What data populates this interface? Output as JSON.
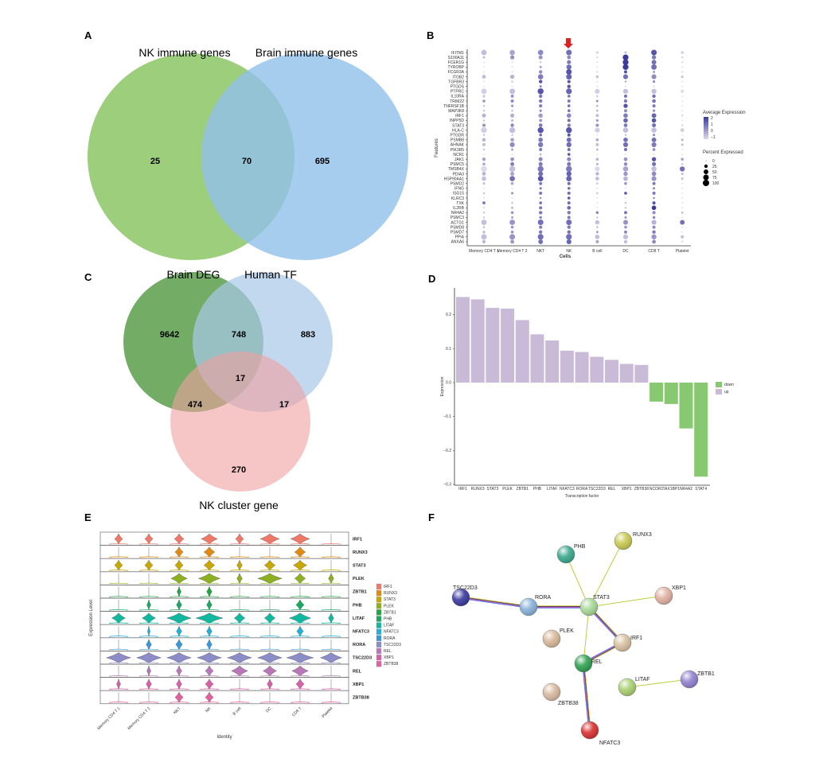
{
  "panels": {
    "A": {
      "label": "A",
      "sets": [
        "NK immune genes",
        "Brain immune genes"
      ],
      "counts": {
        "only_first": "25",
        "both": "70",
        "only_second": "695"
      },
      "colors": [
        "#8cc665",
        "#91c1ea"
      ]
    },
    "B": {
      "label": "B",
      "xlabel": "Cells",
      "ylabel": "Features",
      "legend_expr_title": "Average Expression",
      "legend_expr_ticks": [
        "2",
        "1",
        "0",
        "−1"
      ],
      "legend_pct_title": "Percent Expressed",
      "legend_pct_ticks": [
        "0",
        "25",
        "50",
        "75",
        "100"
      ],
      "highlight_column": "NK",
      "highlight_icon": "red-arrow-down-icon"
    },
    "C": {
      "label": "C",
      "sets": [
        "Brain DEG",
        "Human TF",
        "NK cluster gene"
      ],
      "counts": {
        "a": "9642",
        "ab": "748",
        "b": "883",
        "abc": "17",
        "ac": "474",
        "bc": "17",
        "c": "270"
      },
      "colors": [
        "#5a9e4a",
        "#a8c8e8",
        "#f0a0a0"
      ]
    },
    "D": {
      "label": "D"
    },
    "E": {
      "label": "E"
    },
    "F": {
      "label": "F",
      "nodes": [
        {
          "name": "RUNX3",
          "color": "#c8c850"
        },
        {
          "name": "PHB",
          "color": "#3aa88c"
        },
        {
          "name": "TSC22D3",
          "color": "#3a3aa0"
        },
        {
          "name": "RORA",
          "color": "#88b0d8"
        },
        {
          "name": "STAT3",
          "color": "#a8d898"
        },
        {
          "name": "XBP1",
          "color": "#e0b0a0"
        },
        {
          "name": "PLEK",
          "color": "#d8b898"
        },
        {
          "name": "IRF1",
          "color": "#d8c0a0"
        },
        {
          "name": "REL",
          "color": "#30a050"
        },
        {
          "name": "ZBTB1",
          "color": "#9080d0"
        },
        {
          "name": "LITAF",
          "color": "#a8d070"
        },
        {
          "name": "ZBTB38",
          "color": "#d8b8a0"
        },
        {
          "name": "NFATC3",
          "color": "#d83030"
        }
      ],
      "edges": [
        [
          "RUNX3",
          "STAT3"
        ],
        [
          "PHB",
          "STAT3"
        ],
        [
          "TSC22D3",
          "RORA"
        ],
        [
          "RORA",
          "STAT3"
        ],
        [
          "STAT3",
          "XBP1"
        ],
        [
          "STAT3",
          "IRF1"
        ],
        [
          "STAT3",
          "REL"
        ],
        [
          "IRF1",
          "REL"
        ],
        [
          "REL",
          "NFATC3"
        ],
        [
          "LITAF",
          "ZBTB1"
        ]
      ]
    }
  },
  "chart_data": [
    {
      "panel": "B",
      "type": "scatter",
      "subtype": "dot-plot",
      "xlabel": "Cells",
      "ylabel": "Features",
      "categories": [
        "Memory CD4 T 1",
        "Memory CD4 T 2",
        "NKT",
        "NK",
        "B cell",
        "DC",
        "CD8 T",
        "Platelet"
      ],
      "features": [
        "IFITM1",
        "S100A11",
        "FCER1G",
        "TYROBP",
        "FCGR3A",
        "ITGB2",
        "TGFBR3",
        "PTGDS",
        "PTPRC",
        "IL10RA",
        "TRIM22",
        "TNFRSF1B",
        "MAP3K8",
        "IRF1",
        "INPP5D",
        "STAT3",
        "HLA-C",
        "PTGDR",
        "PSMB8",
        "AHNAK",
        "PIK3R5",
        "NCR1",
        "JAK1",
        "PSMC5",
        "TMSB4X",
        "PDIA3",
        "HSP90AA1",
        "PSMD2",
        "IFNG",
        "ISG15",
        "KLRC3",
        "TXK",
        "IL2RB",
        "NR4A2",
        "PSMC3",
        "ACTG1",
        "PSMD8",
        "PSMD7",
        "PPIA",
        "ANXA6"
      ],
      "percent_expressed": [
        [
          70,
          65,
          70,
          75,
          10,
          10,
          75,
          15
        ],
        [
          10,
          40,
          35,
          30,
          5,
          80,
          40,
          5
        ],
        [
          2,
          2,
          5,
          35,
          2,
          80,
          50,
          5
        ],
        [
          2,
          2,
          10,
          60,
          2,
          80,
          70,
          2
        ],
        [
          2,
          2,
          25,
          75,
          5,
          20,
          10,
          5
        ],
        [
          35,
          40,
          65,
          75,
          15,
          55,
          55,
          10
        ],
        [
          2,
          5,
          25,
          20,
          2,
          5,
          10,
          2
        ],
        [
          2,
          2,
          10,
          25,
          2,
          2,
          5,
          2
        ],
        [
          70,
          70,
          85,
          80,
          55,
          55,
          60,
          20
        ],
        [
          10,
          20,
          25,
          15,
          5,
          20,
          25,
          2
        ],
        [
          15,
          20,
          25,
          20,
          10,
          25,
          30,
          2
        ],
        [
          5,
          10,
          20,
          15,
          5,
          40,
          20,
          2
        ],
        [
          5,
          5,
          10,
          15,
          5,
          20,
          10,
          2
        ],
        [
          35,
          35,
          40,
          45,
          20,
          45,
          50,
          5
        ],
        [
          5,
          10,
          15,
          20,
          10,
          45,
          45,
          2
        ],
        [
          20,
          25,
          30,
          25,
          20,
          30,
          35,
          5
        ],
        [
          80,
          80,
          85,
          85,
          55,
          65,
          65,
          30
        ],
        [
          5,
          5,
          15,
          20,
          2,
          5,
          10,
          2
        ],
        [
          25,
          30,
          45,
          50,
          15,
          45,
          50,
          10
        ],
        [
          20,
          55,
          60,
          60,
          20,
          55,
          55,
          10
        ],
        [
          5,
          10,
          20,
          20,
          5,
          20,
          15,
          2
        ],
        [
          2,
          2,
          5,
          15,
          2,
          2,
          2,
          2
        ],
        [
          25,
          30,
          35,
          35,
          15,
          30,
          40,
          15
        ],
        [
          15,
          30,
          35,
          35,
          10,
          25,
          35,
          5
        ],
        [
          85,
          85,
          85,
          85,
          55,
          65,
          65,
          60
        ],
        [
          30,
          35,
          55,
          60,
          25,
          40,
          45,
          10
        ],
        [
          45,
          65,
          70,
          70,
          30,
          45,
          55,
          10
        ],
        [
          10,
          15,
          20,
          20,
          5,
          15,
          20,
          2
        ],
        [
          2,
          2,
          10,
          15,
          2,
          2,
          10,
          2
        ],
        [
          5,
          10,
          20,
          20,
          5,
          15,
          20,
          2
        ],
        [
          2,
          2,
          5,
          15,
          2,
          2,
          5,
          2
        ],
        [
          15,
          5,
          15,
          20,
          2,
          5,
          20,
          2
        ],
        [
          5,
          10,
          20,
          30,
          2,
          5,
          45,
          2
        ],
        [
          5,
          15,
          25,
          25,
          15,
          20,
          20,
          5
        ],
        [
          5,
          10,
          15,
          20,
          5,
          10,
          15,
          2
        ],
        [
          70,
          70,
          75,
          75,
          40,
          55,
          55,
          50
        ],
        [
          5,
          15,
          20,
          25,
          5,
          15,
          20,
          2
        ],
        [
          10,
          15,
          25,
          25,
          10,
          20,
          25,
          2
        ],
        [
          75,
          75,
          80,
          80,
          45,
          55,
          60,
          20
        ],
        [
          20,
          30,
          50,
          55,
          20,
          25,
          30,
          5
        ]
      ],
      "average_expression": [
        [
          -0.5,
          0,
          0.5,
          1,
          -0.8,
          -0.5,
          1.5,
          -0.8
        ],
        [
          -0.5,
          0.3,
          0.3,
          0.5,
          -1,
          2,
          0.8,
          -0.8
        ],
        [
          -1,
          -1,
          -0.5,
          0.8,
          -1,
          2,
          1,
          -1
        ],
        [
          -1,
          -1,
          0,
          1,
          -1,
          2,
          1,
          -1
        ],
        [
          -1,
          -1,
          0.5,
          1.5,
          -1,
          1.5,
          0,
          -1
        ],
        [
          -0.5,
          -0.3,
          0.8,
          1.2,
          -0.5,
          1,
          0.5,
          -0.5
        ],
        [
          -1,
          -0.5,
          1.5,
          1.5,
          -1,
          0,
          0.5,
          -1
        ],
        [
          -1,
          -1,
          0.5,
          1.5,
          -1,
          -1,
          -1,
          -1
        ],
        [
          -0.8,
          -0.5,
          1.5,
          1.2,
          -0.8,
          -0.5,
          -0.5,
          -1
        ],
        [
          -0.5,
          0.3,
          0.8,
          1,
          -0.5,
          1,
          1,
          -1
        ],
        [
          0.3,
          0.5,
          0.8,
          0.8,
          0.3,
          0.8,
          0.8,
          -1
        ],
        [
          -0.5,
          0.3,
          0.8,
          1,
          0,
          1.5,
          0.8,
          -1
        ],
        [
          -0.5,
          -0.3,
          0.5,
          1,
          0,
          0.5,
          0.5,
          -1
        ],
        [
          -0.3,
          -0.2,
          0.2,
          0.5,
          -0.5,
          0.8,
          1.2,
          -0.8
        ],
        [
          -0.5,
          -0.3,
          0.5,
          1,
          0.3,
          1.2,
          1.5,
          -1
        ],
        [
          0.3,
          0.5,
          0.8,
          0.8,
          0.3,
          0.8,
          1,
          -0.8
        ],
        [
          -0.8,
          -0.5,
          1.5,
          1.5,
          -0.8,
          -0.5,
          -0.5,
          -0.8
        ],
        [
          -0.5,
          -0.5,
          1,
          1.5,
          -1,
          -0.5,
          0.5,
          -1
        ],
        [
          -0.3,
          0,
          0.8,
          1,
          0,
          1,
          1,
          -0.3
        ],
        [
          -0.5,
          0.5,
          0.8,
          1,
          -0.5,
          1,
          0.8,
          -0.5
        ],
        [
          -0.5,
          0,
          0.8,
          1,
          0,
          1,
          0.5,
          -1
        ],
        [
          -1,
          -1,
          0,
          1.5,
          -1,
          -1,
          -1,
          -1
        ],
        [
          0,
          0.3,
          0.5,
          0.5,
          -0.3,
          0.3,
          1.5,
          0
        ],
        [
          0,
          0.8,
          0.8,
          0.8,
          -0.3,
          0.5,
          1,
          -0.5
        ],
        [
          -1,
          -0.5,
          0.8,
          0.8,
          -1,
          0,
          -0.5,
          1
        ],
        [
          -0.3,
          0,
          1,
          1.2,
          -0.3,
          0.3,
          0.5,
          -0.5
        ],
        [
          -0.5,
          1,
          1.5,
          1.2,
          -0.5,
          -0.3,
          0.3,
          -0.5
        ],
        [
          -0.5,
          0,
          0.8,
          1,
          -0.5,
          0.3,
          0.8,
          -1
        ],
        [
          -1,
          -1,
          0.8,
          1,
          -1,
          -1,
          0.5,
          -1
        ],
        [
          -0.5,
          0.3,
          0.8,
          1,
          -0.5,
          1.5,
          0.8,
          -1
        ],
        [
          -1,
          -1,
          0.5,
          1.5,
          -1,
          -1,
          0.8,
          -1
        ],
        [
          1,
          -0.5,
          1,
          1,
          -1,
          -0.5,
          1.5,
          -1
        ],
        [
          -1,
          -0.5,
          0.8,
          1,
          -1,
          -0.5,
          2,
          -1
        ],
        [
          -0.5,
          0.3,
          0.8,
          0.8,
          0.5,
          0.8,
          0.5,
          0
        ],
        [
          -0.5,
          0,
          0.5,
          0.8,
          -0.5,
          0.3,
          0.5,
          -1
        ],
        [
          -0.5,
          0.3,
          1,
          1,
          -0.5,
          0.3,
          -0.3,
          1
        ],
        [
          -0.3,
          0.3,
          0.8,
          0.8,
          -0.3,
          0.3,
          0.5,
          -1
        ],
        [
          -0.3,
          0.3,
          0.8,
          1,
          0,
          0.5,
          0.8,
          -1
        ],
        [
          -0.5,
          0.3,
          1,
          1,
          -0.5,
          -0.5,
          0.3,
          -0.5
        ],
        [
          -0.3,
          0.3,
          1,
          1.2,
          0,
          -0.5,
          0.5,
          -1
        ]
      ],
      "expression_range": [
        -1,
        2
      ],
      "color_low": "#ddd8ea",
      "color_high": "#3b3b9e"
    },
    {
      "panel": "D",
      "type": "bar",
      "xlabel": "Transcription factor",
      "ylabel": "Expression",
      "categories": [
        "IRF1",
        "RUNX3",
        "STAT3",
        "PLEK",
        "ZBTB1",
        "PHB",
        "LITAF",
        "NFATC3",
        "RORA",
        "TSC22D3",
        "REL",
        "XBP1",
        "ZBTB38",
        "NCOR1",
        "TAX1BP1",
        "NR4A2",
        "STAT4"
      ],
      "values": [
        0.252,
        0.245,
        0.22,
        0.218,
        0.184,
        0.142,
        0.124,
        0.094,
        0.09,
        0.076,
        0.067,
        0.055,
        0.052,
        -0.056,
        -0.063,
        -0.135,
        -0.277
      ],
      "groups": [
        "up",
        "up",
        "up",
        "up",
        "up",
        "up",
        "up",
        "up",
        "up",
        "up",
        "up",
        "up",
        "up",
        "down",
        "down",
        "down",
        "down"
      ],
      "ylim": [
        -0.3,
        0.26
      ],
      "yticks": [
        "0.2",
        "0.1",
        "0.0",
        "−0.1",
        "−0.2",
        "−0.3"
      ],
      "ytick_values": [
        0.2,
        0.1,
        0,
        -0.1,
        -0.2,
        -0.3
      ],
      "legend": [
        {
          "name": "down",
          "color": "#88c870"
        },
        {
          "name": "up",
          "color": "#c9bbd8"
        }
      ],
      "legend_position": "right",
      "grid": false
    },
    {
      "panel": "E",
      "type": "violin",
      "xlabel": "Identity",
      "ylabel": "Expression Level",
      "categories": [
        "Memory CD4 T 1",
        "Memory CD4 T 2",
        "NKT",
        "NK",
        "B cell",
        "DC",
        "CD8 T",
        "Platelet"
      ],
      "features": [
        "IRF1",
        "RUNX3",
        "STAT3",
        "PLEK",
        "ZBTB1",
        "PHB",
        "LITAF",
        "NFATC3",
        "RORA",
        "TSC22D3",
        "REL",
        "XBP1",
        "ZBTB38"
      ],
      "colors": [
        "#f07868",
        "#e08a10",
        "#c8a800",
        "#8cb020",
        "#20a840",
        "#18a860",
        "#10b8a0",
        "#20b0d8",
        "#3898d8",
        "#8c8cc8",
        "#b878b8",
        "#d860a8",
        "#e060a0"
      ],
      "relative_width": [
        [
          0.3,
          0.3,
          0.35,
          0.6,
          0.3,
          0.7,
          0.7,
          0.05
        ],
        [
          0.05,
          0.05,
          0.3,
          0.4,
          0.05,
          0.05,
          0.4,
          0.05
        ],
        [
          0.3,
          0.3,
          0.3,
          0.4,
          0.2,
          0.4,
          0.5,
          0.05
        ],
        [
          0.05,
          0.05,
          0.6,
          0.8,
          0.2,
          0.9,
          0.4,
          0.2
        ],
        [
          0.05,
          0.05,
          0.15,
          0.2,
          0.05,
          0.05,
          0.05,
          0.05
        ],
        [
          0.05,
          0.15,
          0.2,
          0.2,
          0.05,
          0.05,
          0.3,
          0.05
        ],
        [
          0.5,
          0.5,
          0.9,
          1,
          0.4,
          0.4,
          0.8,
          0.2
        ],
        [
          0.05,
          0.1,
          0.2,
          0.2,
          0.05,
          0.05,
          0.25,
          0.05
        ],
        [
          0.05,
          0.2,
          0.25,
          0.2,
          0.05,
          0.05,
          0.05,
          0.05
        ],
        [
          0.9,
          0.9,
          0.9,
          0.9,
          0.9,
          0.9,
          1,
          0.8
        ],
        [
          0.05,
          0.15,
          0.2,
          0.3,
          0.6,
          0.5,
          0.6,
          0.05
        ],
        [
          0.15,
          0.2,
          0.2,
          0.3,
          0.05,
          0.2,
          0.3,
          0.05
        ],
        [
          0.05,
          0.05,
          0.3,
          0.3,
          0.05,
          0.05,
          0.05,
          0.05
        ]
      ]
    }
  ]
}
